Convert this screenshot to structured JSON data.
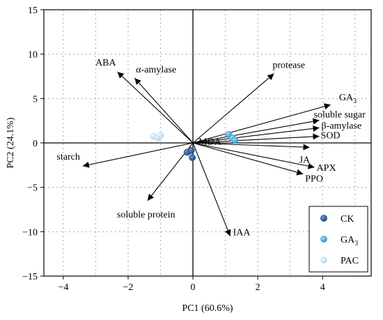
{
  "chart_data": {
    "type": "scatter",
    "subtype": "pca-biplot",
    "xlabel": "PC1 (60.6%)",
    "ylabel": "PC2 (24.1%)",
    "xlim": [
      -4.6,
      5.5
    ],
    "ylim": [
      -15,
      15
    ],
    "x_ticks": [
      -4,
      -2,
      0,
      2,
      4
    ],
    "x_tick_labels": [
      "−4",
      "−2",
      "0",
      "2",
      "4"
    ],
    "y_ticks": [
      -15,
      -10,
      -5,
      0,
      5,
      10,
      15
    ],
    "y_tick_labels": [
      "−15",
      "−10",
      "−5",
      "0",
      "5",
      "10",
      "15"
    ],
    "grid": "dotted",
    "legend_position": "bottom-right",
    "loadings": [
      {
        "name": "ABA",
        "x": -2.33,
        "y": 8.0
      },
      {
        "name": "α-amylase",
        "x": -1.8,
        "y": 7.3
      },
      {
        "name": "protease",
        "x": 2.5,
        "y": 7.8
      },
      {
        "name": "GA3",
        "x": 4.25,
        "y": 4.3
      },
      {
        "name": "soluble sugar",
        "x": 3.9,
        "y": 2.55
      },
      {
        "name": "β-amylase",
        "x": 3.9,
        "y": 1.7
      },
      {
        "name": "SOD",
        "x": 3.9,
        "y": 0.75
      },
      {
        "name": "MDA",
        "x": 0.0,
        "y": 0.1
      },
      {
        "name": "JA",
        "x": 3.6,
        "y": -0.5
      },
      {
        "name": "APX",
        "x": 3.75,
        "y": -2.75
      },
      {
        "name": "PPO",
        "x": 3.4,
        "y": -3.5
      },
      {
        "name": "starch",
        "x": -3.4,
        "y": -2.6
      },
      {
        "name": "soluble protein",
        "x": -1.4,
        "y": -6.5
      },
      {
        "name": "IAA",
        "x": 1.15,
        "y": -10.5
      }
    ],
    "series": [
      {
        "name": "CK",
        "color": "#1f4e8c",
        "points": [
          [
            -0.18,
            -1.05
          ],
          [
            -0.05,
            -0.85
          ],
          [
            -0.02,
            -1.65
          ]
        ]
      },
      {
        "name": "GA3",
        "color": "#3aa7d4",
        "points": [
          [
            1.1,
            0.95
          ],
          [
            1.22,
            0.55
          ],
          [
            1.3,
            0.3
          ]
        ]
      },
      {
        "name": "PAC",
        "color": "#c5dff0",
        "points": [
          [
            -1.22,
            0.75
          ],
          [
            -1.08,
            0.55
          ],
          [
            -1.0,
            0.85
          ]
        ]
      }
    ]
  }
}
